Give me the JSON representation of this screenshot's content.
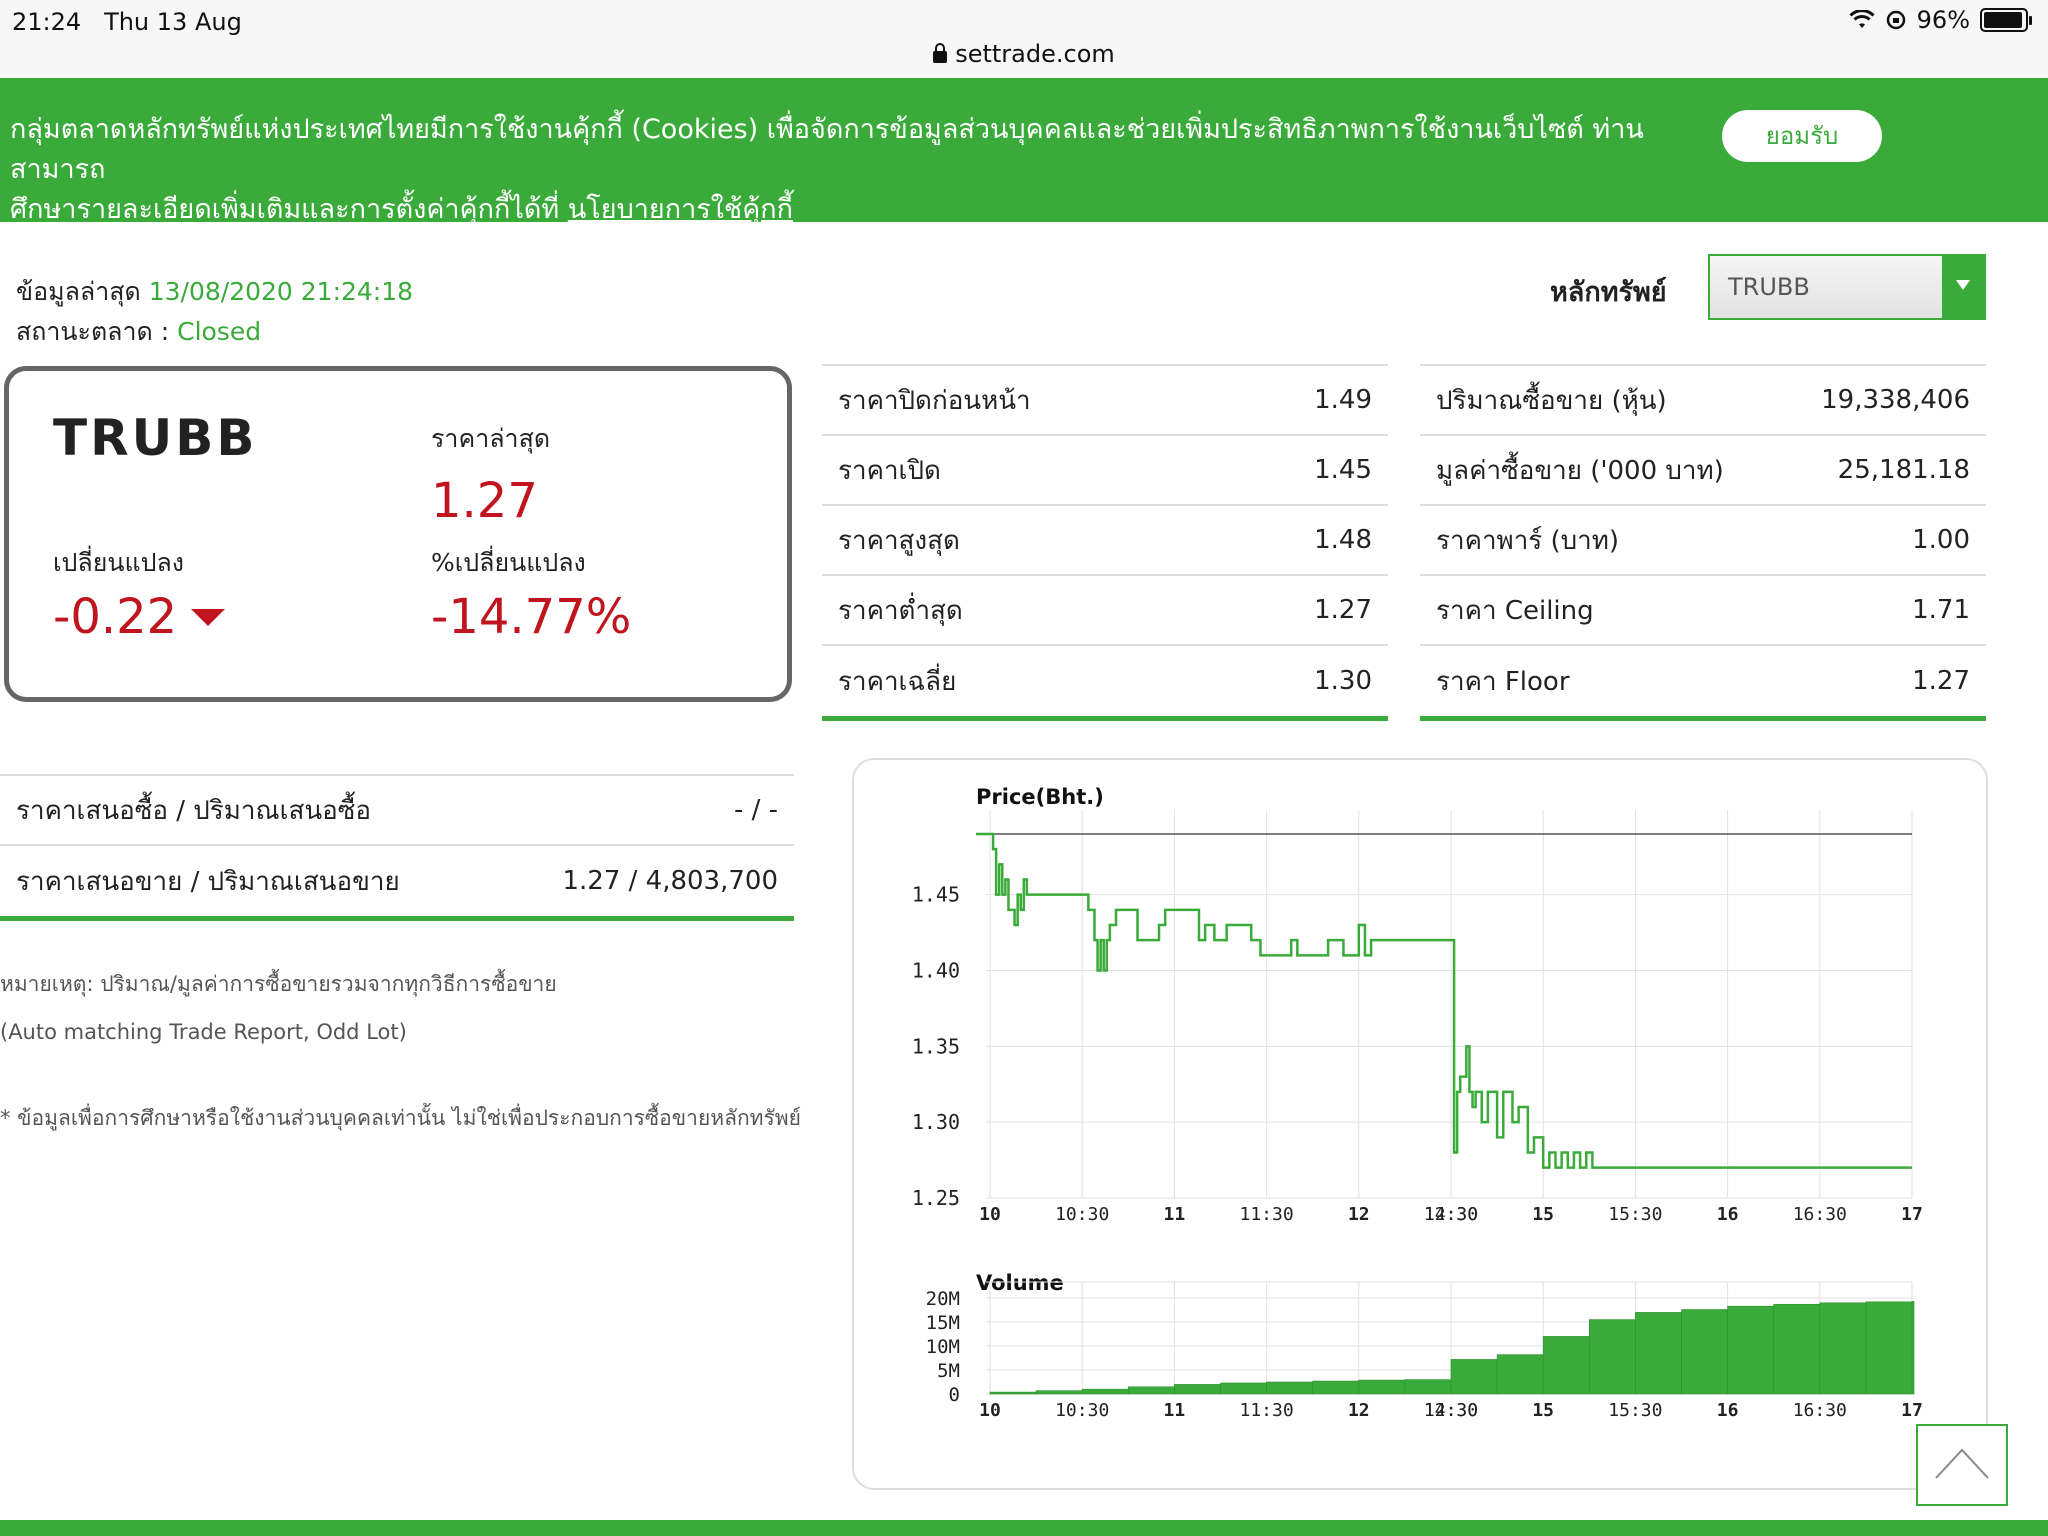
{
  "status_bar": {
    "time": "21:24",
    "date": "Thu 13 Aug",
    "battery": "96%",
    "battery_level": 0.96,
    "url": "settrade.com"
  },
  "cookie_banner": {
    "text_line1": "กลุ่มตลาดหลักทรัพย์แห่งประเทศไทยมีการใช้งานคุ้กกี้ (Cookies) เพื่อจัดการข้อมูลส่วนบุคคลและช่วยเพิ่มประสิทธิภาพการใช้งานเว็บไซต์ ท่านสามารถ",
    "text_line2": "ศึกษารายละเอียดเพิ่มเติมและการตั้งค่าคุ้กกี้ได้ที่",
    "policy_link": "นโยบายการใช้คุ้กกี้",
    "accept_label": "ยอมรับ"
  },
  "info": {
    "latest_label": "ข้อมูลล่าสุด",
    "latest_time": "13/08/2020 21:24:18",
    "market_status_label": "สถานะตลาด :",
    "market_status": "Closed",
    "security_label": "หลักทรัพย์",
    "security_selected": "TRUBB"
  },
  "quote": {
    "symbol": "TRUBB",
    "last_label": "ราคาล่าสุด",
    "last": "1.27",
    "change_label": "เปลี่ยนแปลง",
    "change": "-0.22",
    "pct_label": "%เปลี่ยนแปลง",
    "pct_change": "-14.77%"
  },
  "stats_left": [
    {
      "label": "ราคาปิดก่อนหน้า",
      "value": "1.49"
    },
    {
      "label": "ราคาเปิด",
      "value": "1.45"
    },
    {
      "label": "ราคาสูงสุด",
      "value": "1.48"
    },
    {
      "label": "ราคาต่ำสุด",
      "value": "1.27"
    },
    {
      "label": "ราคาเฉลี่ย",
      "value": "1.30"
    }
  ],
  "stats_right": [
    {
      "label": "ปริมาณซื้อขาย (หุ้น)",
      "value": "19,338,406"
    },
    {
      "label": "มูลค่าซื้อขาย ('000 บาท)",
      "value": "25,181.18"
    },
    {
      "label": "ราคาพาร์ (บาท)",
      "value": "1.00"
    },
    {
      "label": "ราคา Ceiling",
      "value": "1.71"
    },
    {
      "label": "ราคา Floor",
      "value": "1.27"
    }
  ],
  "bid_offer": [
    {
      "label": "ราคาเสนอซื้อ / ปริมาณเสนอซื้อ",
      "value": "- / -"
    },
    {
      "label": "ราคาเสนอขาย / ปริมาณเสนอขาย",
      "value": "1.27 / 4,803,700"
    }
  ],
  "notes": {
    "note1": "หมายเหตุ: ปริมาณ/มูลค่าการซื้อขายรวมจากทุกวิธีการซื้อขาย",
    "note2": "(Auto matching Trade Report, Odd Lot)",
    "note3": "* ข้อมูลเพื่อการศึกษาหรือใช้งานส่วนบุคคลเท่านั้น ไม่ใช่เพื่อประกอบการซื้อขายหลักทรัพย์"
  },
  "colors": {
    "accent": "#3aab3a",
    "down": "#c0141f"
  },
  "icons": {
    "scroll_top": "chevron-up-icon",
    "dropdown": "triangle-down-icon",
    "change": "triangle-down-icon"
  },
  "chart_data": [
    {
      "type": "line",
      "title": "Price(Bht.)",
      "ylim": [
        1.25,
        1.49
      ],
      "y_ticks": [
        "1.45",
        "1.40",
        "1.35",
        "1.30",
        "1.25"
      ],
      "x_ticks": [
        "10",
        "10:30",
        "11",
        "11:30",
        "12",
        "12:30",
        "14:30",
        "15",
        "15:30",
        "16",
        "16:30",
        "17"
      ],
      "reference_line": 1.49,
      "series": [
        {
          "x": [
            "10:00",
            "10:01",
            "10:02",
            "10:03",
            "10:04",
            "10:05",
            "10:06",
            "10:08",
            "10:09",
            "10:10",
            "10:11",
            "10:12",
            "10:15",
            "10:25",
            "10:32",
            "10:34",
            "10:35",
            "10:36",
            "10:37",
            "10:38",
            "10:39",
            "10:41",
            "10:45",
            "10:48",
            "10:55",
            "10:57",
            "11:05",
            "11:08",
            "11:10",
            "11:13",
            "11:17",
            "11:20",
            "11:25",
            "11:28",
            "11:30",
            "11:38",
            "11:40",
            "11:45",
            "11:50",
            "11:55",
            "12:00",
            "12:02",
            "12:04",
            "12:06",
            "12:10",
            "12:15",
            "12:20",
            "14:30",
            "14:31",
            "14:32",
            "14:33",
            "14:35",
            "14:36",
            "14:37",
            "14:38",
            "14:40",
            "14:42",
            "14:45",
            "14:47",
            "14:50",
            "14:52",
            "14:55",
            "14:57",
            "15:00",
            "15:02",
            "15:04",
            "15:06",
            "15:08",
            "15:10",
            "15:12",
            "15:14",
            "15:16",
            "17:00"
          ],
          "y": [
            1.49,
            1.48,
            1.45,
            1.47,
            1.45,
            1.46,
            1.44,
            1.43,
            1.45,
            1.44,
            1.46,
            1.45,
            1.45,
            1.45,
            1.44,
            1.42,
            1.4,
            1.42,
            1.4,
            1.42,
            1.43,
            1.44,
            1.44,
            1.42,
            1.43,
            1.44,
            1.44,
            1.42,
            1.43,
            1.42,
            1.43,
            1.43,
            1.42,
            1.41,
            1.41,
            1.42,
            1.41,
            1.41,
            1.42,
            1.41,
            1.43,
            1.41,
            1.42,
            1.42,
            1.42,
            1.42,
            1.42,
            1.42,
            1.28,
            1.32,
            1.33,
            1.35,
            1.32,
            1.31,
            1.32,
            1.3,
            1.32,
            1.29,
            1.32,
            1.3,
            1.31,
            1.28,
            1.29,
            1.27,
            1.28,
            1.27,
            1.28,
            1.27,
            1.28,
            1.27,
            1.28,
            1.27,
            1.27
          ]
        }
      ]
    },
    {
      "type": "bar",
      "title": "Volume",
      "ylim": [
        0,
        20
      ],
      "y_ticks": [
        "20M",
        "15M",
        "10M",
        "5M",
        "0"
      ],
      "x_ticks": [
        "10",
        "10:30",
        "11",
        "11:30",
        "12",
        "12:30",
        "14:30",
        "15",
        "15:30",
        "16",
        "16:30",
        "17"
      ],
      "note": "cumulative volume in millions of shares",
      "series": [
        {
          "x": [
            "10:00",
            "10:15",
            "10:30",
            "10:45",
            "11:00",
            "11:15",
            "11:30",
            "11:45",
            "12:00",
            "12:15",
            "12:30",
            "14:30",
            "14:45",
            "15:00",
            "15:15",
            "15:30",
            "15:45",
            "16:00",
            "16:15",
            "16:30",
            "16:45",
            "17:00"
          ],
          "y": [
            0.4,
            0.7,
            1.0,
            1.5,
            2.0,
            2.3,
            2.5,
            2.7,
            2.9,
            3.0,
            3.2,
            7.2,
            8.2,
            12.0,
            15.5,
            17.0,
            17.6,
            18.3,
            18.7,
            19.0,
            19.2,
            19.3
          ]
        }
      ]
    }
  ]
}
